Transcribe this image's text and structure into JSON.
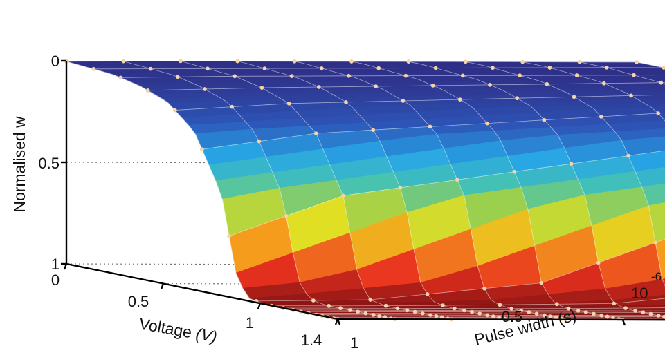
{
  "chart_data": {
    "type": "surface3d",
    "zlabel": "Normalised w",
    "xlabel": "Voltage",
    "xlabel_unit": "(V)",
    "ylabel": "Pulse width (s)",
    "z_ticks": [
      "0",
      "0.5",
      "1"
    ],
    "voltage_ticks": [
      "0",
      "0.5",
      "1",
      "1.4"
    ],
    "pulse_ticks": [
      "1",
      "0.5"
    ],
    "pulse_exponent_base": "10",
    "pulse_exponent": "-6",
    "z_range": [
      0,
      1
    ],
    "voltage_range": [
      0,
      1.4
    ],
    "pulse_range_us": [
      0,
      1
    ],
    "z_axis_reversed": true,
    "colormap": "jet",
    "marker_color": "#f3d6b1",
    "grid": true,
    "voltage_samples": [
      0.0,
      0.14,
      0.28,
      0.42,
      0.56,
      0.7,
      0.84,
      0.98,
      1.06,
      1.12,
      1.17,
      1.21,
      1.25,
      1.29,
      1.32,
      1.35,
      1.38,
      1.4
    ],
    "pulse_samples_us": [
      0.0,
      0.1,
      0.2,
      0.3,
      0.4,
      0.5,
      0.6,
      0.7,
      0.8,
      0.9,
      1.0
    ],
    "z_profile_vs_voltage": [
      0.0,
      0.0,
      0.01,
      0.02,
      0.05,
      0.1,
      0.22,
      0.5,
      0.9,
      0.985,
      0.995,
      1.0,
      1.0,
      1.0,
      1.0,
      1.0,
      1.0,
      1.0
    ],
    "threshold_voltage_by_pulse": [
      1.0,
      0.98,
      0.96,
      0.94,
      0.92,
      0.9,
      0.88,
      0.86,
      0.84,
      0.82,
      0.8
    ]
  }
}
